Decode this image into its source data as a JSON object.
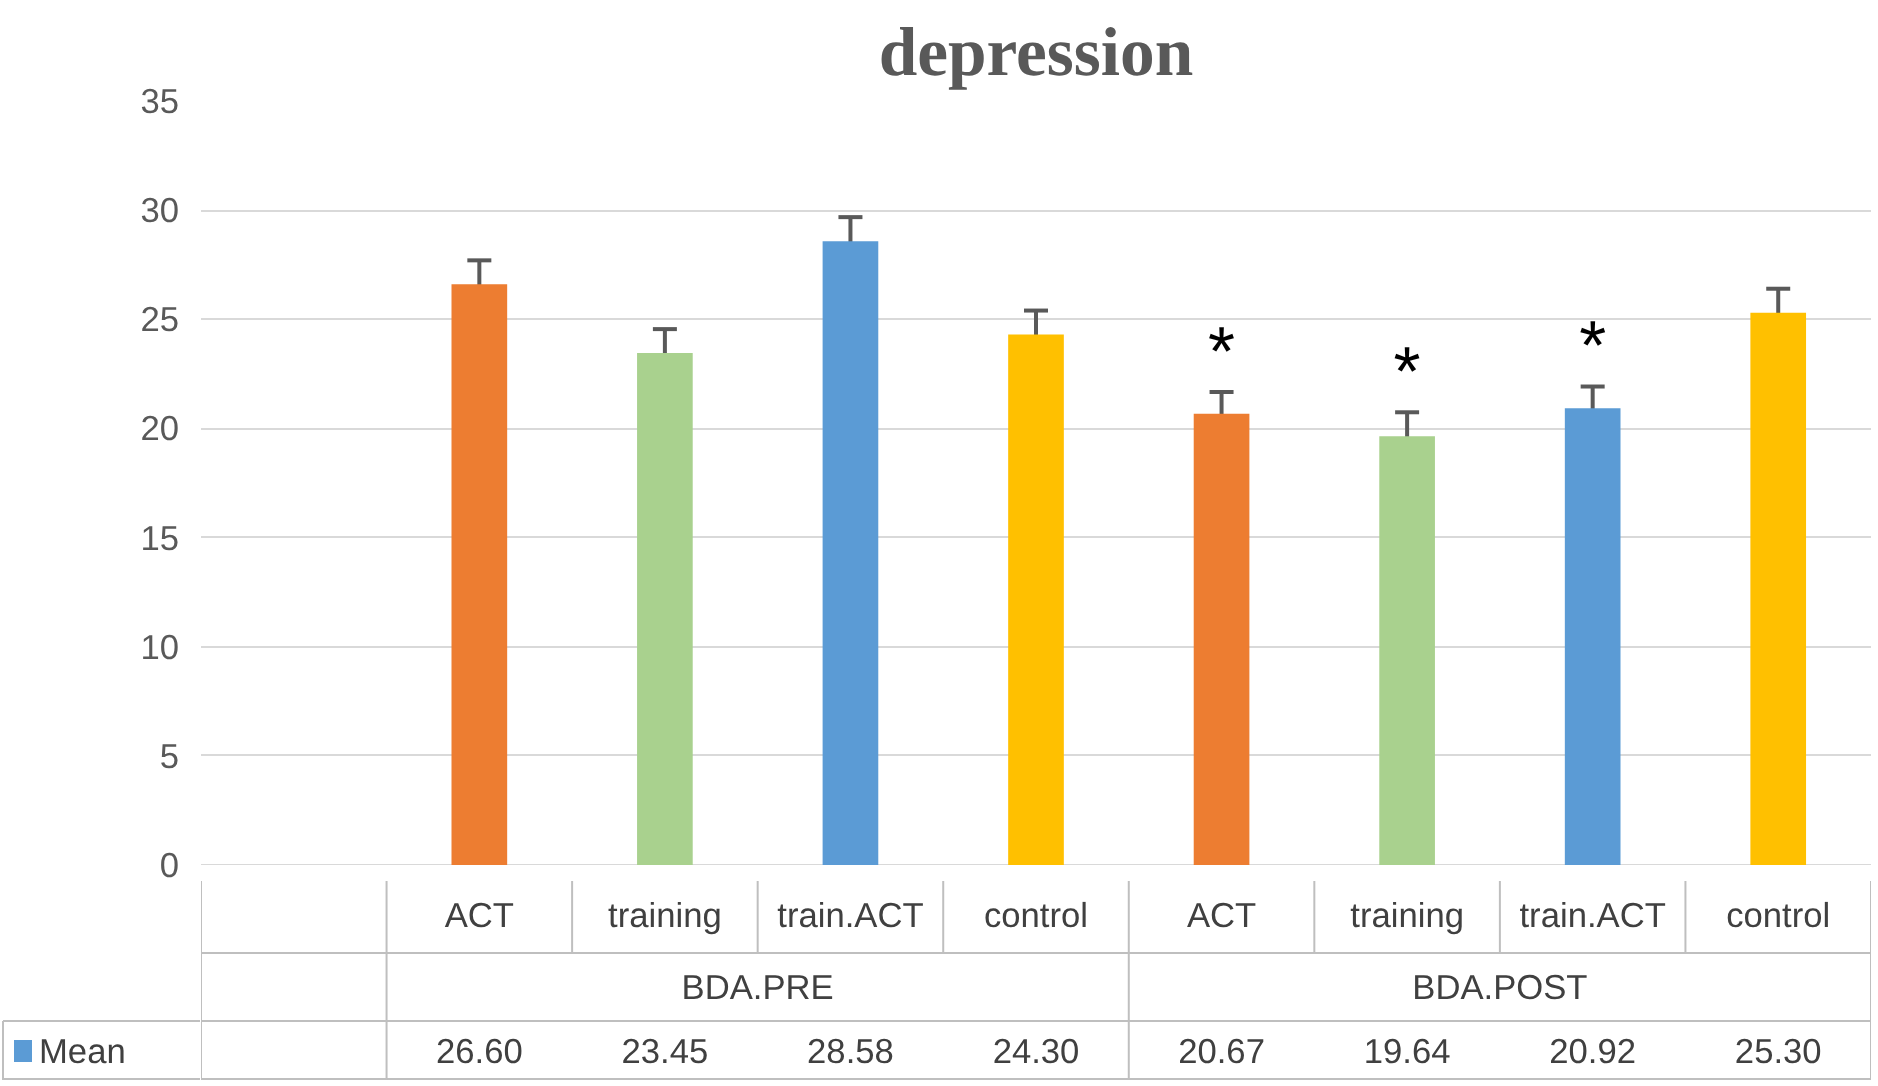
{
  "chart_data": {
    "type": "bar",
    "title": "depression",
    "categories": [
      "ACT",
      "training",
      "train.ACT",
      "control",
      "ACT",
      "training",
      "train.ACT",
      "control"
    ],
    "series": [
      {
        "name": "Mean",
        "color": "#5b9bd5",
        "colors": [
          "#ed7d31",
          "#a9d18e",
          "#5b9bd5",
          "#ffc000",
          "#ed7d31",
          "#a9d18e",
          "#5b9bd5",
          "#ffc000"
        ],
        "values": [
          26.6,
          23.45,
          28.58,
          24.3,
          20.67,
          19.64,
          20.92,
          25.3
        ],
        "errors": [
          1.1,
          1.1,
          1.1,
          1.1,
          1.0,
          1.1,
          1.0,
          1.1
        ],
        "value_labels": [
          "26.60",
          "23.45",
          "28.58",
          "24.30",
          "20.67",
          "19.64",
          "20.92",
          "25.30"
        ]
      }
    ],
    "annotations": [
      "BDA.PRE",
      "BDA.POST",
      "*",
      "*",
      "*"
    ],
    "ylim": [
      0,
      35
    ],
    "yticks": [
      0,
      5,
      10,
      15,
      20,
      25,
      30,
      35
    ],
    "grid": "y",
    "legend": "bottom"
  }
}
